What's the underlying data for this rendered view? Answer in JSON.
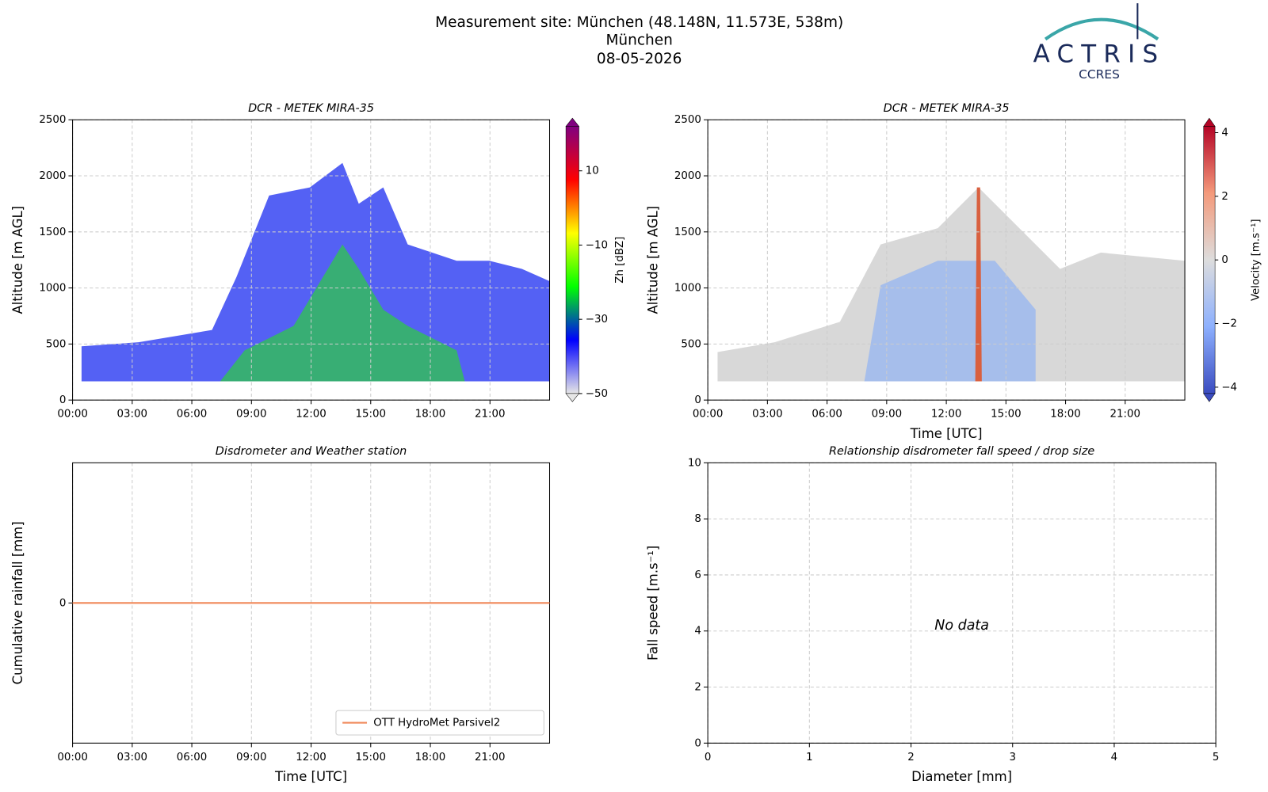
{
  "header": {
    "title": "Measurement site: München (48.148N, 11.573E, 538m)",
    "subtitle": "München",
    "date": "08-05-2026",
    "logo": "ACTRIS",
    "logo_sub": "CCRES"
  },
  "chart_data": [
    {
      "type": "heatmap",
      "title": "DCR - METEK MIRA-35",
      "y_label": "Altitude [m AGL]",
      "xlim": [
        0,
        24
      ],
      "xticks": [
        {
          "value": 0,
          "label": "00:00"
        },
        {
          "value": 3,
          "label": "03:00"
        },
        {
          "value": 6,
          "label": "06:00"
        },
        {
          "value": 9,
          "label": "09:00"
        },
        {
          "value": 12,
          "label": "12:00"
        },
        {
          "value": 15,
          "label": "15:00"
        },
        {
          "value": 18,
          "label": "18:00"
        },
        {
          "value": 21,
          "label": "21:00"
        }
      ],
      "ylim": [
        0,
        2500
      ],
      "yticks": [
        0,
        500,
        1000,
        1500,
        2000,
        2500
      ],
      "grid": true,
      "colorbar_label": "Zh [dBZ]",
      "clim": [
        -50,
        22
      ],
      "cticks": [
        {
          "value": -50,
          "label": "−50"
        },
        {
          "value": -30,
          "label": "−30"
        },
        {
          "value": -10,
          "label": "−10"
        },
        10
      ],
      "colormap": [
        "#e6e6e6",
        "#0000ff",
        "#00ff00",
        "#ffff00",
        "#ff0000",
        "#800080"
      ]
    },
    {
      "type": "heatmap",
      "title": "DCR - METEK MIRA-35",
      "y_label": "Altitude [m AGL]",
      "x_label": "Time [UTC]",
      "xlim": [
        0,
        24
      ],
      "xticks": [
        {
          "value": 0,
          "label": "00:00"
        },
        {
          "value": 3,
          "label": "03:00"
        },
        {
          "value": 6,
          "label": "06:00"
        },
        {
          "value": 9,
          "label": "09:00"
        },
        {
          "value": 12,
          "label": "12:00"
        },
        {
          "value": 15,
          "label": "15:00"
        },
        {
          "value": 18,
          "label": "18:00"
        },
        {
          "value": 21,
          "label": "21:00"
        }
      ],
      "ylim": [
        0,
        2500
      ],
      "yticks": [
        0,
        500,
        1000,
        1500,
        2000,
        2500
      ],
      "grid": true,
      "colorbar_label": "Velocity [m.s⁻¹]",
      "clim": [
        -4.2,
        4.2
      ],
      "cticks": [
        {
          "value": -4,
          "label": "−4"
        },
        {
          "value": -2,
          "label": "−2"
        },
        0,
        2,
        4
      ],
      "colormap": [
        "#3b4cc0",
        "#8db0fe",
        "#dddddd",
        "#f49a7b",
        "#b40426"
      ]
    },
    {
      "type": "line",
      "title": "Disdrometer and Weather station",
      "x_label": "Time [UTC]",
      "y_label": "Cumulative rainfall [mm]",
      "xlim": [
        0,
        24
      ],
      "xticks": [
        {
          "value": 0,
          "label": "00:00"
        },
        {
          "value": 3,
          "label": "03:00"
        },
        {
          "value": 6,
          "label": "06:00"
        },
        {
          "value": 9,
          "label": "09:00"
        },
        {
          "value": 12,
          "label": "12:00"
        },
        {
          "value": 15,
          "label": "15:00"
        },
        {
          "value": 18,
          "label": "18:00"
        },
        {
          "value": 21,
          "label": "21:00"
        }
      ],
      "ylim": [
        -1,
        1
      ],
      "yticks": [
        0
      ],
      "grid": true,
      "legend": "lower right",
      "series": [
        {
          "name": "OTT HydroMet Parsivel2",
          "color": "#f0895a",
          "x": [
            0,
            24
          ],
          "values": [
            0,
            0
          ]
        }
      ]
    },
    {
      "type": "scatter",
      "title": "Relationship disdrometer fall speed / drop size",
      "x_label": "Diameter [mm]",
      "y_label": "Fall speed [m.s⁻¹]",
      "xlim": [
        0,
        5
      ],
      "xticks": [
        0,
        1,
        2,
        3,
        4,
        5
      ],
      "ylim": [
        0,
        10
      ],
      "yticks": [
        0,
        2,
        4,
        6,
        8,
        10
      ],
      "grid": true,
      "annotation": "No data"
    }
  ]
}
